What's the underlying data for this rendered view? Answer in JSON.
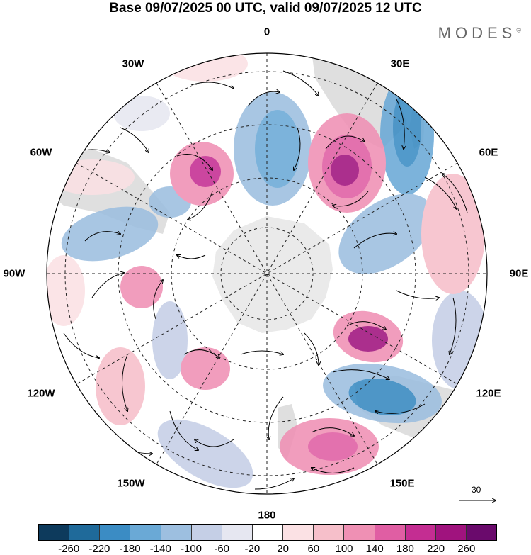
{
  "title": "Base 09/07/2025 00 UTC, valid 09/07/2025 12 UTC",
  "brand": "MODES",
  "brand_mark": "©",
  "longitude_labels": {
    "lon_0": "0",
    "lon_30e": "30E",
    "lon_60e": "60E",
    "lon_90e": "90E",
    "lon_120e": "120E",
    "lon_150e": "150E",
    "lon_180": "180",
    "lon_150w": "150W",
    "lon_120w": "120W",
    "lon_90w": "90W",
    "lon_60w": "60W",
    "lon_30w": "30W"
  },
  "reference_vector_label": "30",
  "colorbar": {
    "colors": [
      "#0d3a5c",
      "#1f6a9a",
      "#3b8cc4",
      "#6aa9d6",
      "#9dbfe0",
      "#c5cfe6",
      "#e6e7f1",
      "#ffffff",
      "#fbe1e4",
      "#f6bfca",
      "#ef90b4",
      "#e05ea3",
      "#c42d92",
      "#a0137e",
      "#6a0a6c"
    ],
    "tick_labels": [
      "-260",
      "-220",
      "-180",
      "-140",
      "-100",
      "-60",
      "-20",
      "20",
      "60",
      "100",
      "140",
      "180",
      "220",
      "260"
    ]
  },
  "colors": {
    "land": "#dcdcdc",
    "antarctica": "#e8e8e8",
    "grid": "#222222",
    "neutral": "#ffffff"
  }
}
